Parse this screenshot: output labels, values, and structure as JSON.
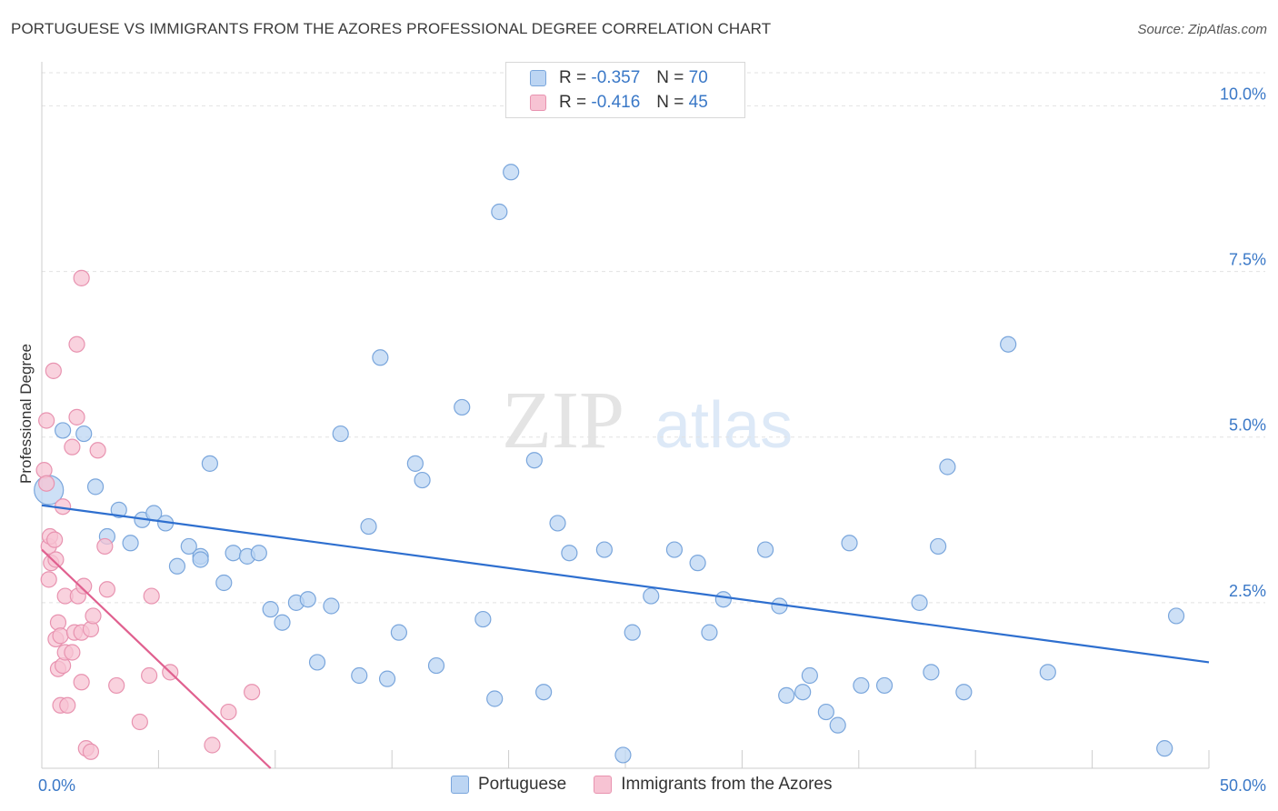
{
  "title": "PORTUGUESE VS IMMIGRANTS FROM THE AZORES PROFESSIONAL DEGREE CORRELATION CHART",
  "source": "Source: ZipAtlas.com",
  "watermark": {
    "zip": "ZIP",
    "atlas": "atlas"
  },
  "colors": {
    "blue_fill": "#bcd5f3",
    "blue_stroke": "#7aa6dc",
    "blue_line": "#2e6fcf",
    "pink_fill": "#f7c3d3",
    "pink_stroke": "#e893b0",
    "pink_line": "#e0608f",
    "axis_label": "#3a78c7",
    "grid": "#e2e2e2"
  },
  "legend": {
    "rows": [
      {
        "r_label": "R =",
        "r_value": "-0.357",
        "n_label": "N =",
        "n_value": "70"
      },
      {
        "r_label": "R =",
        "r_value": "-0.416",
        "n_label": "N =",
        "n_value": "45"
      }
    ]
  },
  "bottom_legend": [
    "Portuguese",
    "Immigrants from the Azores"
  ],
  "chart_data": {
    "type": "scatter",
    "xlabel": "",
    "ylabel": "Professional Degree",
    "xlim": [
      0,
      50
    ],
    "ylim": [
      0,
      10.5
    ],
    "x_tick_labels": [
      {
        "value": 0,
        "label": "0.0%"
      },
      {
        "value": 50,
        "label": "50.0%"
      }
    ],
    "y_ticks": [
      {
        "value": 2.5,
        "label": "2.5%"
      },
      {
        "value": 5.0,
        "label": "5.0%"
      },
      {
        "value": 7.5,
        "label": "7.5%"
      },
      {
        "value": 10.0,
        "label": "10.0%"
      }
    ],
    "series": [
      {
        "name": "Portuguese",
        "trend": {
          "x": [
            0,
            50
          ],
          "y": [
            3.97,
            1.6
          ]
        },
        "points": [
          {
            "x": 0.3,
            "y": 4.2,
            "big": true
          },
          {
            "x": 0.9,
            "y": 5.1
          },
          {
            "x": 1.8,
            "y": 5.05
          },
          {
            "x": 2.3,
            "y": 4.25
          },
          {
            "x": 2.8,
            "y": 3.5
          },
          {
            "x": 3.3,
            "y": 3.9
          },
          {
            "x": 3.8,
            "y": 3.4
          },
          {
            "x": 4.3,
            "y": 3.75
          },
          {
            "x": 4.8,
            "y": 3.85
          },
          {
            "x": 5.3,
            "y": 3.7
          },
          {
            "x": 5.8,
            "y": 3.05
          },
          {
            "x": 6.3,
            "y": 3.35
          },
          {
            "x": 6.8,
            "y": 3.2
          },
          {
            "x": 7.2,
            "y": 4.6
          },
          {
            "x": 7.8,
            "y": 2.8
          },
          {
            "x": 8.2,
            "y": 3.25
          },
          {
            "x": 8.8,
            "y": 3.2
          },
          {
            "x": 9.3,
            "y": 3.25
          },
          {
            "x": 9.8,
            "y": 2.4
          },
          {
            "x": 10.3,
            "y": 2.2
          },
          {
            "x": 10.9,
            "y": 2.5
          },
          {
            "x": 11.4,
            "y": 2.55
          },
          {
            "x": 11.8,
            "y": 1.6
          },
          {
            "x": 12.4,
            "y": 2.45
          },
          {
            "x": 12.8,
            "y": 5.05
          },
          {
            "x": 13.6,
            "y": 1.4
          },
          {
            "x": 14.0,
            "y": 3.65
          },
          {
            "x": 14.5,
            "y": 6.2
          },
          {
            "x": 14.8,
            "y": 1.35
          },
          {
            "x": 15.3,
            "y": 2.05
          },
          {
            "x": 16.0,
            "y": 4.6
          },
          {
            "x": 16.3,
            "y": 4.35
          },
          {
            "x": 16.9,
            "y": 1.55
          },
          {
            "x": 18.0,
            "y": 5.45
          },
          {
            "x": 18.9,
            "y": 2.25
          },
          {
            "x": 19.4,
            "y": 1.05
          },
          {
            "x": 19.6,
            "y": 8.4
          },
          {
            "x": 20.1,
            "y": 9.0
          },
          {
            "x": 21.1,
            "y": 4.65
          },
          {
            "x": 21.5,
            "y": 1.15
          },
          {
            "x": 22.1,
            "y": 3.7
          },
          {
            "x": 22.6,
            "y": 3.25
          },
          {
            "x": 24.1,
            "y": 3.3
          },
          {
            "x": 24.9,
            "y": 0.2
          },
          {
            "x": 25.3,
            "y": 2.05
          },
          {
            "x": 26.1,
            "y": 2.6
          },
          {
            "x": 27.1,
            "y": 3.3
          },
          {
            "x": 28.1,
            "y": 3.1
          },
          {
            "x": 28.6,
            "y": 2.05
          },
          {
            "x": 29.2,
            "y": 2.55
          },
          {
            "x": 31.0,
            "y": 3.3
          },
          {
            "x": 31.6,
            "y": 2.45
          },
          {
            "x": 31.9,
            "y": 1.1
          },
          {
            "x": 32.6,
            "y": 1.15
          },
          {
            "x": 32.9,
            "y": 1.4
          },
          {
            "x": 33.6,
            "y": 0.85
          },
          {
            "x": 34.1,
            "y": 0.65
          },
          {
            "x": 34.6,
            "y": 3.4
          },
          {
            "x": 35.1,
            "y": 1.25
          },
          {
            "x": 36.1,
            "y": 1.25
          },
          {
            "x": 37.6,
            "y": 2.5
          },
          {
            "x": 38.1,
            "y": 1.45
          },
          {
            "x": 38.4,
            "y": 3.35
          },
          {
            "x": 38.8,
            "y": 4.55
          },
          {
            "x": 39.5,
            "y": 1.15
          },
          {
            "x": 41.4,
            "y": 6.4
          },
          {
            "x": 43.1,
            "y": 1.45
          },
          {
            "x": 48.1,
            "y": 0.3
          },
          {
            "x": 48.6,
            "y": 2.3
          },
          {
            "x": 6.8,
            "y": 3.15
          }
        ]
      },
      {
        "name": "Immigrants from the Azores",
        "trend": {
          "x": [
            0,
            9.8
          ],
          "y": [
            3.3,
            0
          ]
        },
        "points": [
          {
            "x": 0.1,
            "y": 4.5
          },
          {
            "x": 0.2,
            "y": 5.25
          },
          {
            "x": 0.2,
            "y": 4.3
          },
          {
            "x": 0.3,
            "y": 2.85
          },
          {
            "x": 0.3,
            "y": 3.35
          },
          {
            "x": 0.35,
            "y": 3.5
          },
          {
            "x": 0.4,
            "y": 3.1
          },
          {
            "x": 0.5,
            "y": 6.0
          },
          {
            "x": 0.55,
            "y": 3.45
          },
          {
            "x": 0.6,
            "y": 3.15
          },
          {
            "x": 0.6,
            "y": 1.95
          },
          {
            "x": 0.7,
            "y": 1.5
          },
          {
            "x": 0.7,
            "y": 2.2
          },
          {
            "x": 0.8,
            "y": 2.0
          },
          {
            "x": 0.8,
            "y": 0.95
          },
          {
            "x": 0.9,
            "y": 3.95
          },
          {
            "x": 0.9,
            "y": 1.55
          },
          {
            "x": 1.0,
            "y": 2.6
          },
          {
            "x": 1.0,
            "y": 1.75
          },
          {
            "x": 1.1,
            "y": 0.95
          },
          {
            "x": 1.3,
            "y": 1.75
          },
          {
            "x": 1.3,
            "y": 4.85
          },
          {
            "x": 1.4,
            "y": 2.05
          },
          {
            "x": 1.5,
            "y": 6.4
          },
          {
            "x": 1.5,
            "y": 5.3
          },
          {
            "x": 1.55,
            "y": 2.6
          },
          {
            "x": 1.7,
            "y": 1.3
          },
          {
            "x": 1.7,
            "y": 2.05
          },
          {
            "x": 1.7,
            "y": 7.4
          },
          {
            "x": 1.8,
            "y": 2.75
          },
          {
            "x": 1.9,
            "y": 0.3
          },
          {
            "x": 2.1,
            "y": 0.25
          },
          {
            "x": 2.1,
            "y": 2.1
          },
          {
            "x": 2.2,
            "y": 2.3
          },
          {
            "x": 2.4,
            "y": 4.8
          },
          {
            "x": 2.7,
            "y": 3.35
          },
          {
            "x": 2.8,
            "y": 2.7
          },
          {
            "x": 3.2,
            "y": 1.25
          },
          {
            "x": 4.2,
            "y": 0.7
          },
          {
            "x": 4.6,
            "y": 1.4
          },
          {
            "x": 4.7,
            "y": 2.6
          },
          {
            "x": 5.5,
            "y": 1.45
          },
          {
            "x": 7.3,
            "y": 0.35
          },
          {
            "x": 8.0,
            "y": 0.85
          },
          {
            "x": 9.0,
            "y": 1.15
          }
        ]
      }
    ]
  }
}
